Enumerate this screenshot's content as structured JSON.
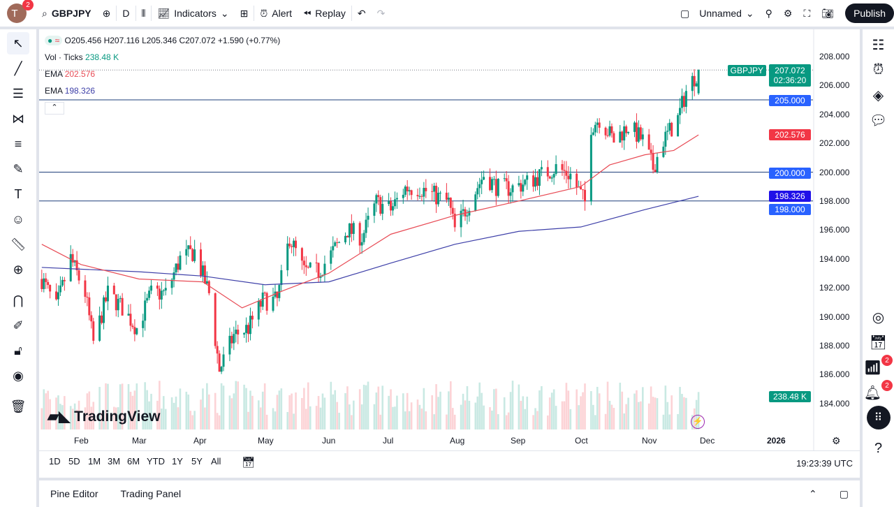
{
  "topbar": {
    "avatar_letter": "T",
    "avatar_badge": "2",
    "symbol": "GBPJPY",
    "interval": "D",
    "indicators": "Indicators",
    "alert": "Alert",
    "replay": "Replay",
    "layout_name": "Unnamed",
    "publish": "Publish"
  },
  "legend": {
    "ohlc": "O205.456  H207.116  L205.346  C207.072  +1.590 (+0.77%)",
    "vol_label": "Vol · Ticks",
    "vol_value": "238.48 K",
    "ema1_label": "EMA",
    "ema1_value": "202.576",
    "ema2_label": "EMA",
    "ema2_value": "198.326"
  },
  "price_axis": {
    "ticks": [
      "208.000",
      "206.000",
      "204.000",
      "202.000",
      "200.000",
      "198.000",
      "196.000",
      "194.000",
      "192.000",
      "190.000",
      "188.000",
      "186.000",
      "184.000"
    ],
    "symbol_tag": "GBPJPY",
    "last_price": "207.072",
    "countdown": "02:36:20",
    "line_205": "205.000",
    "ema1_tag": "202.576",
    "line_200": "200.000",
    "ema2_tag": "198.326",
    "line_198": "198.000",
    "volume_tag": "238.48 K"
  },
  "time_axis": {
    "ticks": [
      "Feb",
      "Mar",
      "Apr",
      "May",
      "Jun",
      "Jul",
      "Aug",
      "Sep",
      "Oct",
      "Nov",
      "Dec",
      "2026"
    ]
  },
  "ranges": [
    "1D",
    "5D",
    "1M",
    "3M",
    "6M",
    "YTD",
    "1Y",
    "5Y",
    "All"
  ],
  "clock": "19:23:39 UTC",
  "bottom_tabs": {
    "pine": "Pine Editor",
    "trading": "Trading Panel"
  },
  "watermark": "TradingView",
  "right_badges": {
    "ideas": "2",
    "alerts": "2"
  },
  "colors": {
    "up": "#089981",
    "down": "#f23645",
    "ema1": "#e84b55",
    "ema2": "#3d3fa8",
    "hline": "#1e3f7a",
    "accent": "#2962ff"
  },
  "chart_data": {
    "type": "candlestick",
    "symbol": "GBPJPY",
    "interval": "1D",
    "ylim": [
      183,
      209
    ],
    "horizontal_lines": [
      205,
      200,
      198
    ],
    "closes": [
      [
        "2025-01-13",
        192.6
      ],
      [
        "2025-01-20",
        190.6
      ],
      [
        "2025-01-27",
        194.0
      ],
      [
        "2025-02-03",
        191.6
      ],
      [
        "2025-02-07",
        188.2
      ],
      [
        "2025-02-14",
        191.6
      ],
      [
        "2025-02-21",
        190.6
      ],
      [
        "2025-02-28",
        189.2
      ],
      [
        "2025-03-07",
        191.6
      ],
      [
        "2025-03-14",
        191.6
      ],
      [
        "2025-03-21",
        194.0
      ],
      [
        "2025-03-28",
        194.5
      ],
      [
        "2025-04-04",
        191.6
      ],
      [
        "2025-04-09",
        186.3
      ],
      [
        "2025-04-16",
        188.7
      ],
      [
        "2025-04-23",
        189.2
      ],
      [
        "2025-04-30",
        191.1
      ],
      [
        "2025-05-07",
        191.1
      ],
      [
        "2025-05-13",
        195.5
      ],
      [
        "2025-05-20",
        193.1
      ],
      [
        "2025-05-27",
        193.1
      ],
      [
        "2025-06-03",
        194.5
      ],
      [
        "2025-06-10",
        196.0
      ],
      [
        "2025-06-17",
        195.5
      ],
      [
        "2025-06-24",
        197.9
      ],
      [
        "2025-07-01",
        197.4
      ],
      [
        "2025-07-08",
        198.9
      ],
      [
        "2025-07-15",
        198.9
      ],
      [
        "2025-07-22",
        198.4
      ],
      [
        "2025-07-29",
        197.9
      ],
      [
        "2025-08-01",
        196.0
      ],
      [
        "2025-08-08",
        197.9
      ],
      [
        "2025-08-15",
        199.8
      ],
      [
        "2025-08-22",
        198.9
      ],
      [
        "2025-08-29",
        198.9
      ],
      [
        "2025-09-05",
        199.3
      ],
      [
        "2025-09-12",
        199.8
      ],
      [
        "2025-09-19",
        200.3
      ],
      [
        "2025-09-26",
        199.8
      ],
      [
        "2025-10-03",
        197.9
      ],
      [
        "2025-10-06",
        203.2
      ],
      [
        "2025-10-10",
        203.7
      ],
      [
        "2025-10-17",
        202.2
      ],
      [
        "2025-10-24",
        203.2
      ],
      [
        "2025-10-31",
        202.2
      ],
      [
        "2025-11-05",
        200.3
      ],
      [
        "2025-11-10",
        202.2
      ],
      [
        "2025-11-17",
        203.7
      ],
      [
        "2025-11-21",
        205.6
      ],
      [
        "2025-11-27",
        207.072
      ]
    ],
    "ema_fast": [
      [
        "2025-01-13",
        195.0
      ],
      [
        "2025-02-01",
        193.6
      ],
      [
        "2025-03-01",
        192.6
      ],
      [
        "2025-04-01",
        192.4
      ],
      [
        "2025-04-20",
        190.6
      ],
      [
        "2025-05-10",
        191.8
      ],
      [
        "2025-06-01",
        193.0
      ],
      [
        "2025-07-01",
        195.7
      ],
      [
        "2025-08-01",
        197.0
      ],
      [
        "2025-09-01",
        198.0
      ],
      [
        "2025-10-01",
        199.0
      ],
      [
        "2025-10-15",
        200.5
      ],
      [
        "2025-11-01",
        201.2
      ],
      [
        "2025-11-15",
        201.5
      ],
      [
        "2025-11-27",
        202.576
      ]
    ],
    "ema_slow": [
      [
        "2025-01-13",
        193.4
      ],
      [
        "2025-03-01",
        193.1
      ],
      [
        "2025-04-01",
        192.8
      ],
      [
        "2025-05-01",
        192.2
      ],
      [
        "2025-06-01",
        192.4
      ],
      [
        "2025-07-01",
        193.7
      ],
      [
        "2025-08-01",
        195.0
      ],
      [
        "2025-09-01",
        195.9
      ],
      [
        "2025-10-01",
        196.2
      ],
      [
        "2025-11-01",
        197.4
      ],
      [
        "2025-11-27",
        198.326
      ]
    ]
  }
}
